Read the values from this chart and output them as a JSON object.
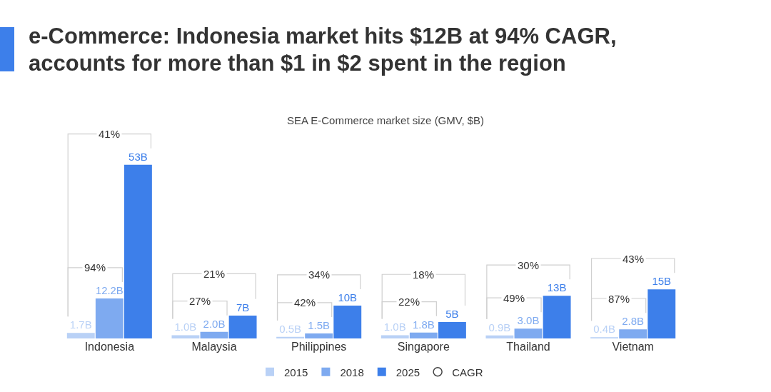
{
  "chart_data": {
    "type": "bar",
    "title": "e-Commerce: Indonesia market hits $12B at 94% CAGR, accounts for more than $1 in $2 spent in the region",
    "subtitle": "SEA E-Commerce market size (GMV, $B)",
    "categories": [
      "Indonesia",
      "Malaysia",
      "Philippines",
      "Singapore",
      "Thailand",
      "Vietnam"
    ],
    "series": [
      {
        "name": "2015",
        "color": "#b9d1f6",
        "values": [
          1.7,
          1.0,
          0.5,
          1.0,
          0.9,
          0.4
        ],
        "value_labels": [
          "1.7B",
          "1.0B",
          "0.5B",
          "1.0B",
          "0.9B",
          "0.4B"
        ]
      },
      {
        "name": "2018",
        "color": "#7eaaf0",
        "values": [
          12.2,
          2.0,
          1.5,
          1.8,
          3.0,
          2.8
        ],
        "value_labels": [
          "12.2B",
          "2.0B",
          "1.5B",
          "1.8B",
          "3.0B",
          "2.8B"
        ]
      },
      {
        "name": "2025",
        "color": "#3d7fea",
        "values": [
          53,
          7,
          10,
          5,
          13,
          15
        ],
        "value_labels": [
          "53B",
          "7B",
          "10B",
          "5B",
          "13B",
          "15B"
        ]
      },
      {
        "name": "CAGR",
        "type": "scatter",
        "color": "#444444",
        "values": [
          null,
          null,
          null,
          null,
          null,
          null
        ]
      }
    ],
    "tick_labels": "x",
    "legend": "bottom",
    "annotations": [
      "41%",
      "94%",
      "21%",
      "27%",
      "34%",
      "42%",
      "18%",
      "22%",
      "30%",
      "49%",
      "43%",
      "87%"
    ]
  }
}
